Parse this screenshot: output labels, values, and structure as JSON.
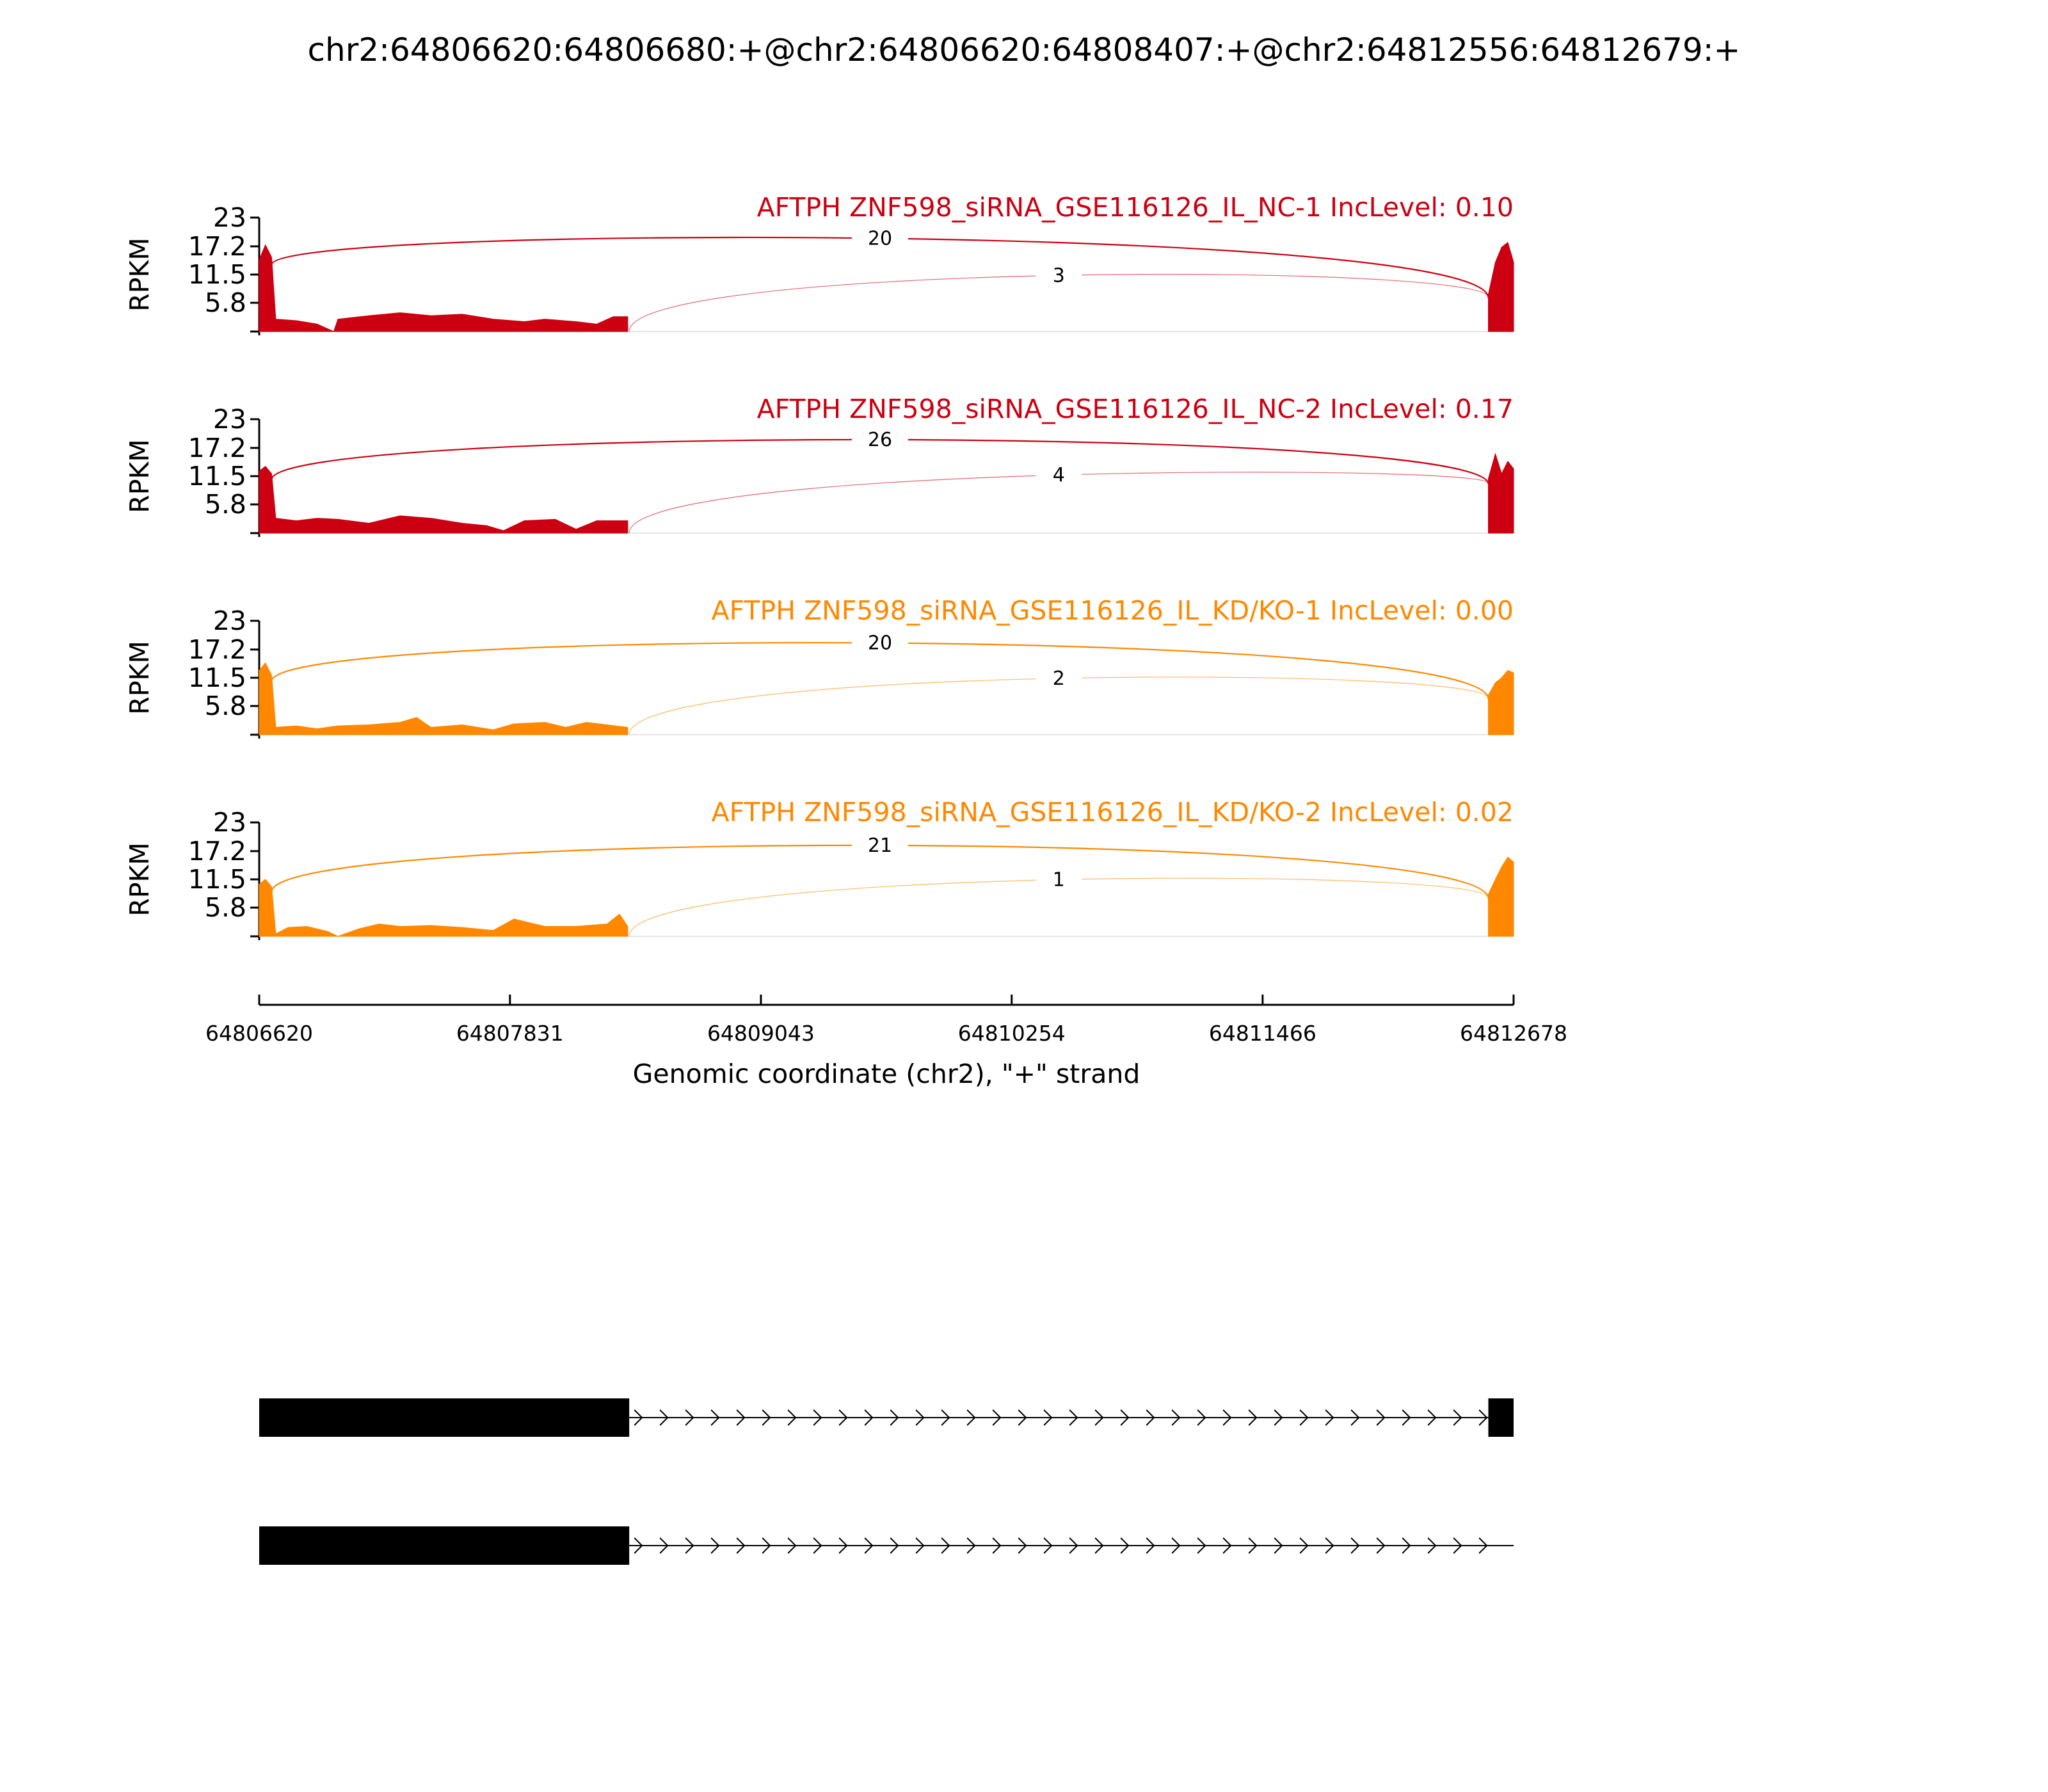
{
  "chart_data": {
    "type": "area",
    "title": "chr2:64806620:64806680:+@chr2:64806620:64808407:+@chr2:64812556:64812679:+",
    "xlabel": "Genomic coordinate (chr2), \"+\" strand",
    "ylabel": "RPKM",
    "xlim": [
      64806620,
      64812678
    ],
    "x_ticks": [
      "64806620",
      "64807831",
      "64809043",
      "64810254",
      "64811466",
      "64812678"
    ],
    "ylim": [
      0,
      23
    ],
    "y_ticks": [
      "23",
      "17.2",
      "11.5",
      "5.8"
    ],
    "exon_regions": [
      {
        "start": 64806620,
        "end": 64808407
      },
      {
        "start": 64812556,
        "end": 64812678
      }
    ],
    "series": [
      {
        "name": "AFTPH ZNF598_siRNA_GSE116126_IL_NC-1 IncLevel: 0.10",
        "color": "#cc0011",
        "inclusion_junction": {
          "from": 64806680,
          "to": 64812556,
          "count": "20"
        },
        "exclusion_junction": {
          "from": 64808407,
          "to": 64812556,
          "count": "3"
        },
        "coverage": [
          {
            "x": 64806620,
            "y": 14.5
          },
          {
            "x": 64806650,
            "y": 17.5
          },
          {
            "x": 64806680,
            "y": 15.0
          },
          {
            "x": 64806700,
            "y": 2.5
          },
          {
            "x": 64806800,
            "y": 2.2
          },
          {
            "x": 64806900,
            "y": 1.5
          },
          {
            "x": 64806980,
            "y": 0.0
          },
          {
            "x": 64807000,
            "y": 2.5
          },
          {
            "x": 64807150,
            "y": 3.2
          },
          {
            "x": 64807300,
            "y": 3.8
          },
          {
            "x": 64807450,
            "y": 3.2
          },
          {
            "x": 64807600,
            "y": 3.5
          },
          {
            "x": 64807750,
            "y": 2.5
          },
          {
            "x": 64807900,
            "y": 2.0
          },
          {
            "x": 64808000,
            "y": 2.5
          },
          {
            "x": 64808150,
            "y": 2.0
          },
          {
            "x": 64808250,
            "y": 1.5
          },
          {
            "x": 64808330,
            "y": 3.0
          },
          {
            "x": 64808400,
            "y": 3.0
          },
          {
            "x": 64812556,
            "y": 7.5
          },
          {
            "x": 64812590,
            "y": 14.0
          },
          {
            "x": 64812620,
            "y": 17.0
          },
          {
            "x": 64812650,
            "y": 18.0
          },
          {
            "x": 64812678,
            "y": 14.0
          }
        ]
      },
      {
        "name": "AFTPH ZNF598_siRNA_GSE116126_IL_NC-2 IncLevel: 0.17",
        "color": "#cc0011",
        "inclusion_junction": {
          "from": 64806680,
          "to": 64812556,
          "count": "26"
        },
        "exclusion_junction": {
          "from": 64808407,
          "to": 64812556,
          "count": "4"
        },
        "coverage": [
          {
            "x": 64806620,
            "y": 12.5
          },
          {
            "x": 64806650,
            "y": 13.5
          },
          {
            "x": 64806680,
            "y": 12.0
          },
          {
            "x": 64806700,
            "y": 3.0
          },
          {
            "x": 64806800,
            "y": 2.5
          },
          {
            "x": 64806900,
            "y": 3.0
          },
          {
            "x": 64807000,
            "y": 2.8
          },
          {
            "x": 64807150,
            "y": 2.0
          },
          {
            "x": 64807300,
            "y": 3.5
          },
          {
            "x": 64807450,
            "y": 3.0
          },
          {
            "x": 64807600,
            "y": 2.0
          },
          {
            "x": 64807720,
            "y": 1.5
          },
          {
            "x": 64807800,
            "y": 0.5
          },
          {
            "x": 64807900,
            "y": 2.5
          },
          {
            "x": 64808050,
            "y": 2.8
          },
          {
            "x": 64808150,
            "y": 0.8
          },
          {
            "x": 64808250,
            "y": 2.5
          },
          {
            "x": 64808400,
            "y": 2.5
          },
          {
            "x": 64812556,
            "y": 11.0
          },
          {
            "x": 64812590,
            "y": 16.0
          },
          {
            "x": 64812620,
            "y": 12.0
          },
          {
            "x": 64812650,
            "y": 14.5
          },
          {
            "x": 64812678,
            "y": 13.0
          }
        ]
      },
      {
        "name": "AFTPH ZNF598_siRNA_GSE116126_IL_KD/KO-1 IncLevel: 0.00",
        "color": "#ff8800",
        "inclusion_junction": {
          "from": 64806680,
          "to": 64812556,
          "count": "20"
        },
        "exclusion_junction": {
          "from": 64808407,
          "to": 64812556,
          "count": "2"
        },
        "coverage": [
          {
            "x": 64806620,
            "y": 13.0
          },
          {
            "x": 64806650,
            "y": 14.5
          },
          {
            "x": 64806680,
            "y": 12.0
          },
          {
            "x": 64806700,
            "y": 1.5
          },
          {
            "x": 64806800,
            "y": 1.8
          },
          {
            "x": 64806900,
            "y": 1.2
          },
          {
            "x": 64807000,
            "y": 1.8
          },
          {
            "x": 64807150,
            "y": 2.0
          },
          {
            "x": 64807300,
            "y": 2.5
          },
          {
            "x": 64807380,
            "y": 3.5
          },
          {
            "x": 64807450,
            "y": 1.5
          },
          {
            "x": 64807600,
            "y": 2.0
          },
          {
            "x": 64807750,
            "y": 1.0
          },
          {
            "x": 64807850,
            "y": 2.2
          },
          {
            "x": 64808000,
            "y": 2.5
          },
          {
            "x": 64808100,
            "y": 1.5
          },
          {
            "x": 64808200,
            "y": 2.5
          },
          {
            "x": 64808400,
            "y": 1.5
          },
          {
            "x": 64812556,
            "y": 8.0
          },
          {
            "x": 64812590,
            "y": 10.5
          },
          {
            "x": 64812620,
            "y": 11.5
          },
          {
            "x": 64812650,
            "y": 13.0
          },
          {
            "x": 64812678,
            "y": 12.5
          }
        ]
      },
      {
        "name": "AFTPH ZNF598_siRNA_GSE116126_IL_KD/KO-2 IncLevel: 0.02",
        "color": "#ff8800",
        "inclusion_junction": {
          "from": 64806680,
          "to": 64812556,
          "count": "21"
        },
        "exclusion_junction": {
          "from": 64808407,
          "to": 64812556,
          "count": "1"
        },
        "coverage": [
          {
            "x": 64806620,
            "y": 10.5
          },
          {
            "x": 64806650,
            "y": 11.5
          },
          {
            "x": 64806680,
            "y": 10.0
          },
          {
            "x": 64806700,
            "y": 0.5
          },
          {
            "x": 64806760,
            "y": 1.8
          },
          {
            "x": 64806850,
            "y": 2.0
          },
          {
            "x": 64806950,
            "y": 1.0
          },
          {
            "x": 64807000,
            "y": 0.0
          },
          {
            "x": 64807100,
            "y": 1.5
          },
          {
            "x": 64807200,
            "y": 2.5
          },
          {
            "x": 64807300,
            "y": 2.0
          },
          {
            "x": 64807450,
            "y": 2.2
          },
          {
            "x": 64807600,
            "y": 1.8
          },
          {
            "x": 64807750,
            "y": 1.2
          },
          {
            "x": 64807850,
            "y": 3.5
          },
          {
            "x": 64808000,
            "y": 2.0
          },
          {
            "x": 64808150,
            "y": 2.0
          },
          {
            "x": 64808300,
            "y": 2.5
          },
          {
            "x": 64808360,
            "y": 4.5
          },
          {
            "x": 64808400,
            "y": 2.0
          },
          {
            "x": 64812556,
            "y": 8.5
          },
          {
            "x": 64812590,
            "y": 11.5
          },
          {
            "x": 64812620,
            "y": 14.0
          },
          {
            "x": 64812650,
            "y": 16.0
          },
          {
            "x": 64812678,
            "y": 15.0
          }
        ]
      }
    ],
    "isoforms": [
      {
        "exons": [
          {
            "start": 64806620,
            "end": 64808407
          },
          {
            "start": 64812556,
            "end": 64812678
          }
        ]
      },
      {
        "exons": [
          {
            "start": 64806620,
            "end": 64808407
          }
        ]
      }
    ]
  }
}
